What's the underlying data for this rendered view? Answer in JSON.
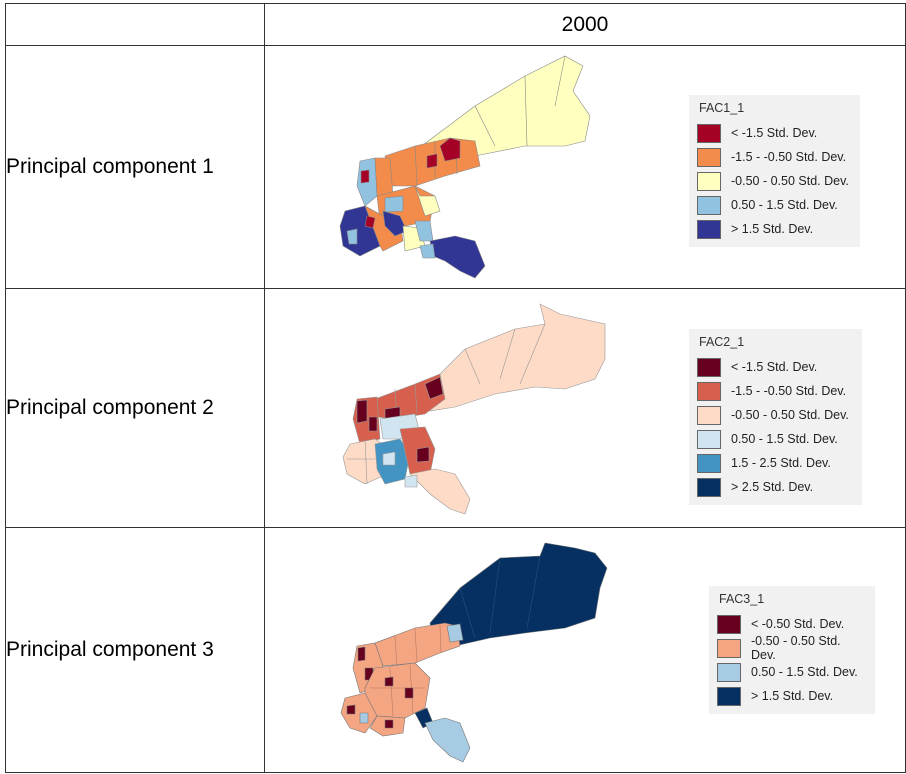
{
  "table": {
    "header": {
      "year": "2000"
    },
    "rows": [
      {
        "label": "Principal component 1",
        "legend": {
          "title": "FAC1_1",
          "items": [
            {
              "label": "< -1.5 Std. Dev.",
              "color": "#a50026"
            },
            {
              "label": "-1.5 - -0.50 Std. Dev.",
              "color": "#f38b4a"
            },
            {
              "label": "-0.50 - 0.50 Std. Dev.",
              "color": "#ffffbf"
            },
            {
              "label": "0.50 - 1.5 Std. Dev.",
              "color": "#91c3e0"
            },
            {
              "label": "> 1.5 Std. Dev.",
              "color": "#313695"
            }
          ]
        }
      },
      {
        "label": "Principal component 2",
        "legend": {
          "title": "FAC2_1",
          "items": [
            {
              "label": "< -1.5 Std. Dev.",
              "color": "#67001f"
            },
            {
              "label": "-1.5 - -0.50 Std. Dev.",
              "color": "#d6604d"
            },
            {
              "label": "-0.50 - 0.50 Std. Dev.",
              "color": "#fddbc7"
            },
            {
              "label": "0.50 - 1.5 Std. Dev.",
              "color": "#d1e5f0"
            },
            {
              "label": "1.5 - 2.5 Std. Dev.",
              "color": "#4393c3"
            },
            {
              "label": "> 2.5 Std. Dev.",
              "color": "#053061"
            }
          ]
        }
      },
      {
        "label": "Principal component 3",
        "legend": {
          "title": "FAC3_1",
          "items": [
            {
              "label": "< -0.50 Std. Dev.",
              "color": "#67001f"
            },
            {
              "label": "-0.50 - 0.50 Std. Dev.",
              "color": "#f4a582"
            },
            {
              "label": "0.50 - 1.5 Std. Dev.",
              "color": "#a6cbe3"
            },
            {
              "label": "> 1.5 Std. Dev.",
              "color": "#053061"
            }
          ]
        }
      }
    ]
  }
}
